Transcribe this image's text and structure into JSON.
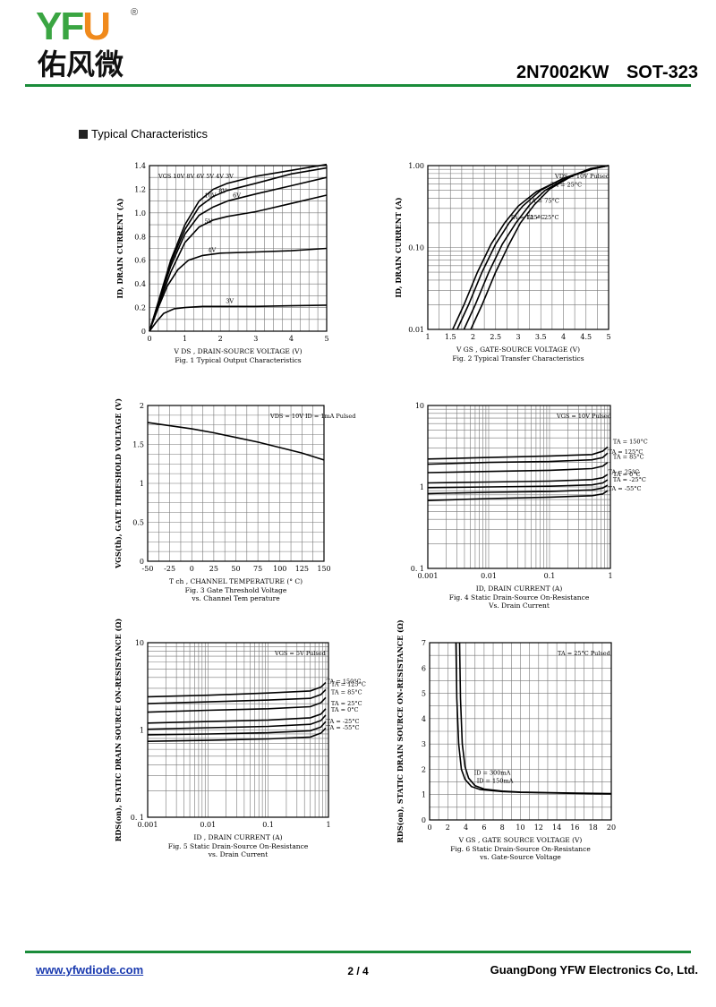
{
  "header": {
    "logo_yf": "YF",
    "logo_u": "U",
    "logo_reg": "®",
    "logo_cn": "佑风微",
    "part": "2N7002KW SOT-323"
  },
  "section_title": "Typical Characteristics",
  "footer": {
    "url": "www.yfwdiode.com",
    "page": "2 / 4",
    "company": "GuangDong YFW Electronics Co, Ltd."
  },
  "colors": {
    "brand_green": "#1a8c3a",
    "brand_orange": "#f08a1c",
    "grid": "#777777"
  },
  "chart_data": [
    {
      "id": "fig1",
      "type": "line",
      "scale": "linear",
      "title": "Fig. 1 Typical Output Characteristics",
      "xlabel": "V DS , DRAIN-SOURCE VOLTAGE (V)",
      "ylabel": "ID, DRAIN CURRENT (A)",
      "xlim": [
        0,
        5
      ],
      "ylim": [
        0,
        1.4
      ],
      "xticks": [
        0,
        1,
        2,
        3,
        4,
        5
      ],
      "xtick_labels": [
        "0",
        "1",
        "2",
        "3",
        "4",
        "5"
      ],
      "yticks": [
        0,
        0.2,
        0.4,
        0.6,
        0.8,
        1.0,
        1.2,
        1.4
      ],
      "ytick_labels": [
        "0",
        "0.2",
        "0.4",
        "0.6",
        "0.8",
        "1.0",
        "1.2",
        "1.4"
      ],
      "legend_text": "VGS 10V 8V 6V 5V 4V 3V",
      "series": [
        {
          "name": "10V",
          "x": [
            0,
            0.3,
            0.6,
            1.0,
            1.4,
            1.8,
            2.2,
            3,
            4,
            5
          ],
          "y": [
            0,
            0.3,
            0.6,
            0.9,
            1.1,
            1.2,
            1.25,
            1.31,
            1.36,
            1.41
          ]
        },
        {
          "name": "8V",
          "x": [
            0,
            0.3,
            0.6,
            1.0,
            1.4,
            1.8,
            2.2,
            3,
            4,
            5
          ],
          "y": [
            0,
            0.29,
            0.58,
            0.86,
            1.05,
            1.14,
            1.19,
            1.25,
            1.33,
            1.38
          ]
        },
        {
          "name": "6V",
          "x": [
            0,
            0.3,
            0.6,
            1.0,
            1.4,
            1.8,
            2.2,
            3,
            4,
            5
          ],
          "y": [
            0,
            0.28,
            0.55,
            0.82,
            0.98,
            1.05,
            1.1,
            1.16,
            1.23,
            1.3
          ]
        },
        {
          "name": "5V",
          "x": [
            0,
            0.3,
            0.6,
            1.0,
            1.4,
            1.8,
            2.2,
            3,
            4,
            5
          ],
          "y": [
            0,
            0.26,
            0.5,
            0.75,
            0.88,
            0.94,
            0.97,
            1.01,
            1.08,
            1.15
          ]
        },
        {
          "name": "4V",
          "x": [
            0,
            0.25,
            0.5,
            0.8,
            1.1,
            1.5,
            2,
            3,
            4,
            5
          ],
          "y": [
            0,
            0.2,
            0.38,
            0.52,
            0.6,
            0.64,
            0.66,
            0.67,
            0.68,
            0.7
          ]
        },
        {
          "name": "3V",
          "x": [
            0,
            0.2,
            0.4,
            0.7,
            1.0,
            1.5,
            2,
            3,
            4,
            5
          ],
          "y": [
            0,
            0.08,
            0.15,
            0.19,
            0.2,
            0.21,
            0.21,
            0.21,
            0.215,
            0.22
          ]
        }
      ],
      "annotations": [
        "10V",
        "8V",
        "6V",
        "5V",
        "4V",
        "3V"
      ]
    },
    {
      "id": "fig2",
      "type": "line",
      "scale": "log-y",
      "title": "Fig. 2 Typical Transfer Characteristics",
      "xlabel": "V GS , GATE-SOURCE VOLTAGE (V)",
      "ylabel": "ID, DRAIN CURRENT (A)",
      "xlim": [
        1,
        5
      ],
      "ylim": [
        0.01,
        1.0
      ],
      "xticks": [
        1,
        1.5,
        2,
        2.5,
        3,
        3.5,
        4,
        4.5,
        5
      ],
      "xtick_labels": [
        "1",
        "1.5",
        "2",
        "2.5",
        "3",
        "3.5",
        "4",
        "4.5",
        "5"
      ],
      "yticks": [
        0.01,
        0.1,
        1.0
      ],
      "ytick_labels": [
        "0.01",
        "0.10",
        "1.00"
      ],
      "legend_text": "VDS = 10V Pulsed",
      "series": [
        {
          "name": "TA = 125°C",
          "x": [
            1.55,
            1.8,
            2.1,
            2.4,
            2.7,
            3.0,
            3.4,
            4.0,
            4.6,
            5.0
          ],
          "y": [
            0.01,
            0.02,
            0.05,
            0.11,
            0.2,
            0.32,
            0.48,
            0.7,
            0.9,
            1.0
          ]
        },
        {
          "name": "TA = 75°C",
          "x": [
            1.65,
            1.9,
            2.2,
            2.5,
            2.8,
            3.1,
            3.5,
            4.0,
            4.6,
            5.0
          ],
          "y": [
            0.01,
            0.02,
            0.05,
            0.11,
            0.2,
            0.32,
            0.5,
            0.7,
            0.9,
            1.0
          ]
        },
        {
          "name": "TA = 25°C",
          "x": [
            1.8,
            2.05,
            2.35,
            2.65,
            2.95,
            3.25,
            3.6,
            4.1,
            4.6,
            5.0
          ],
          "y": [
            0.01,
            0.02,
            0.05,
            0.11,
            0.2,
            0.33,
            0.5,
            0.72,
            0.92,
            1.0
          ]
        },
        {
          "name": "TA = -25°C",
          "x": [
            1.95,
            2.2,
            2.5,
            2.8,
            3.05,
            3.35,
            3.7,
            4.2,
            4.7,
            5.0
          ],
          "y": [
            0.01,
            0.02,
            0.05,
            0.11,
            0.2,
            0.33,
            0.52,
            0.75,
            0.93,
            1.0
          ]
        }
      ],
      "annotations": [
        "TA = 125°C",
        "TA = 75°C",
        "TA = 25°C",
        "TA = -25°C"
      ]
    },
    {
      "id": "fig3",
      "type": "line",
      "scale": "linear",
      "title": "Fig. 3 Gate Threshold Voltage vs. Channel Tem perature",
      "xlabel": "T ch , CHANNEL TEMPERATURE (° C)",
      "ylabel": "VGS(th), GATE THRESHOLD VOLTAGE (V)",
      "xlim": [
        -50,
        150
      ],
      "ylim": [
        0,
        2
      ],
      "xticks": [
        -50,
        -25,
        0,
        25,
        50,
        75,
        100,
        125,
        150
      ],
      "xtick_labels": [
        "-50",
        "-25",
        "0",
        "25",
        "50",
        "75",
        "100",
        "125",
        "150"
      ],
      "yticks": [
        0,
        0.5,
        1,
        1.5,
        2
      ],
      "ytick_labels": [
        "0",
        "0.5",
        "1",
        "1.5",
        "2"
      ],
      "legend_text": "VDS = 10V ID = 1mA Pulsed",
      "series": [
        {
          "name": "VGS(th)",
          "x": [
            -50,
            -25,
            0,
            25,
            50,
            75,
            100,
            125,
            150
          ],
          "y": [
            1.78,
            1.74,
            1.7,
            1.65,
            1.59,
            1.53,
            1.46,
            1.39,
            1.3
          ]
        }
      ]
    },
    {
      "id": "fig4",
      "type": "line",
      "scale": "log-log",
      "title": "Fig. 4 Static Drain-Source On-Resistance Vs. Drain Current",
      "xlabel": "ID, DRAIN CURRENT (A)",
      "ylabel": "",
      "xlim": [
        0.001,
        1
      ],
      "ylim": [
        0.1,
        10
      ],
      "xticks": [
        0.001,
        0.01,
        0.1,
        1
      ],
      "xtick_labels": [
        "0.001",
        "0.01",
        "0.1",
        "1"
      ],
      "yticks": [
        0.1,
        1,
        10
      ],
      "ytick_labels": [
        "0. 1",
        "1",
        "10"
      ],
      "legend_text": "VGS = 10V Pulsed",
      "series": [
        {
          "name": "TA = 150°C",
          "x": [
            0.001,
            0.01,
            0.1,
            0.5,
            0.75,
            0.9
          ],
          "y": [
            2.2,
            2.3,
            2.4,
            2.5,
            2.75,
            3.1
          ]
        },
        {
          "name": "TA = 125°C",
          "x": [
            0.001,
            0.01,
            0.1,
            0.5,
            0.75,
            0.9
          ],
          "y": [
            1.9,
            2.0,
            2.05,
            2.15,
            2.3,
            2.6
          ]
        },
        {
          "name": "TA = 85°C",
          "x": [
            0.001,
            0.01,
            0.1,
            0.5,
            0.75,
            0.9
          ],
          "y": [
            1.5,
            1.55,
            1.6,
            1.68,
            1.8,
            2.0
          ]
        },
        {
          "name": "TA = 25°C",
          "x": [
            0.001,
            0.01,
            0.1,
            0.5,
            0.75,
            0.9
          ],
          "y": [
            1.12,
            1.15,
            1.18,
            1.23,
            1.3,
            1.42
          ]
        },
        {
          "name": "TA = 0°C",
          "x": [
            0.001,
            0.01,
            0.1,
            0.5,
            0.75,
            0.9
          ],
          "y": [
            0.98,
            1.0,
            1.02,
            1.06,
            1.12,
            1.22
          ]
        },
        {
          "name": "TA = -25°C",
          "x": [
            0.001,
            0.01,
            0.1,
            0.5,
            0.75,
            0.9
          ],
          "y": [
            0.83,
            0.86,
            0.88,
            0.92,
            0.97,
            1.05
          ]
        },
        {
          "name": "TA = -55°C",
          "x": [
            0.001,
            0.01,
            0.1,
            0.5,
            0.75,
            0.9
          ],
          "y": [
            0.68,
            0.72,
            0.75,
            0.78,
            0.82,
            0.9
          ]
        }
      ],
      "annotations": [
        "TA = 125°C",
        "TA = 85°C",
        "TA = 150°C",
        "TA = 25°C",
        "TA = 0°C",
        "TA = -25°C",
        "TA = -55°C"
      ]
    },
    {
      "id": "fig5",
      "type": "line",
      "scale": "log-log",
      "title": "Fig. 5 Static Drain-Source On-Resistance vs. Drain Current",
      "xlabel": "ID , DRAIN CURRENT (A)",
      "ylabel": "RDS(on), STATIC DRAIN SOURCE ON-RESISTANCE (Ω)",
      "xlim": [
        0.001,
        1
      ],
      "ylim": [
        0.1,
        10
      ],
      "xticks": [
        0.001,
        0.01,
        0.1,
        1
      ],
      "xtick_labels": [
        "0.001",
        "0.01",
        "0.1",
        "1"
      ],
      "yticks": [
        0.1,
        1,
        10
      ],
      "ytick_labels": [
        "0. 1",
        "1",
        "10"
      ],
      "legend_text": "VGS = 5V Pulsed",
      "series": [
        {
          "name": "TA = 150°C",
          "x": [
            0.001,
            0.01,
            0.1,
            0.5,
            0.75,
            0.9
          ],
          "y": [
            2.4,
            2.5,
            2.65,
            2.8,
            3.1,
            3.5
          ]
        },
        {
          "name": "TA = 125°C",
          "x": [
            0.001,
            0.01,
            0.1,
            0.5,
            0.75,
            0.9
          ],
          "y": [
            2.0,
            2.1,
            2.2,
            2.3,
            2.55,
            2.9
          ]
        },
        {
          "name": "TA = 85°C",
          "x": [
            0.001,
            0.01,
            0.1,
            0.5,
            0.75,
            0.9
          ],
          "y": [
            1.6,
            1.68,
            1.75,
            1.85,
            2.05,
            2.35
          ]
        },
        {
          "name": "TA = 25°C",
          "x": [
            0.001,
            0.01,
            0.1,
            0.5,
            0.75,
            0.9
          ],
          "y": [
            1.2,
            1.25,
            1.3,
            1.38,
            1.52,
            1.75
          ]
        },
        {
          "name": "TA = 0°C",
          "x": [
            0.001,
            0.01,
            0.1,
            0.5,
            0.75,
            0.9
          ],
          "y": [
            1.02,
            1.06,
            1.1,
            1.16,
            1.28,
            1.48
          ]
        },
        {
          "name": "TA = -25°C",
          "x": [
            0.001,
            0.01,
            0.1,
            0.5,
            0.75,
            0.9
          ],
          "y": [
            0.88,
            0.9,
            0.93,
            0.98,
            1.08,
            1.25
          ]
        },
        {
          "name": "TA = -55°C",
          "x": [
            0.001,
            0.01,
            0.1,
            0.5,
            0.75,
            0.9
          ],
          "y": [
            0.74,
            0.76,
            0.79,
            0.83,
            0.92,
            1.05
          ]
        }
      ],
      "annotations": [
        "TA = 150°C",
        "TA = 125°C",
        "TA = 85°C",
        "TA = -55°C",
        "TA = 25°C",
        "TA = 0°C",
        "TA = -25°C"
      ]
    },
    {
      "id": "fig6",
      "type": "line",
      "scale": "linear",
      "title": "Fig. 6 Static Drain-Source On-Resistance vs. Gate-Source Voltage",
      "xlabel": "V GS , GATE SOURCE VOLTAGE (V)",
      "ylabel": "RDS(on), STATIC DRAIN SOURCE ON-RESISTANCE (Ω)",
      "xlim": [
        0,
        20
      ],
      "ylim": [
        0,
        7
      ],
      "xticks": [
        0,
        2,
        4,
        6,
        8,
        10,
        12,
        14,
        16,
        18,
        20
      ],
      "xtick_labels": [
        "0",
        "2",
        "4",
        "6",
        "8",
        "10",
        "12",
        "14",
        "16",
        "18",
        "20"
      ],
      "yticks": [
        0,
        1,
        2,
        3,
        4,
        5,
        6,
        7
      ],
      "ytick_labels": [
        "0",
        "1",
        "2",
        "3",
        "4",
        "5",
        "6",
        "7"
      ],
      "legend_text": "TA = 25°C Pulsed",
      "series": [
        {
          "name": "ID = 300mA",
          "x": [
            3.3,
            3.4,
            3.6,
            3.9,
            4.3,
            5,
            6,
            8,
            10,
            14,
            20
          ],
          "y": [
            7,
            4.8,
            3.0,
            2.1,
            1.65,
            1.35,
            1.22,
            1.14,
            1.1,
            1.07,
            1.04
          ]
        },
        {
          "name": "ID = 150mA",
          "x": [
            2.9,
            3.0,
            3.2,
            3.5,
            3.9,
            4.6,
            5.6,
            8,
            10,
            14,
            20
          ],
          "y": [
            7,
            4.8,
            3.0,
            2.0,
            1.6,
            1.32,
            1.2,
            1.12,
            1.09,
            1.06,
            1.03
          ]
        }
      ],
      "annotations": [
        "ID = 300mA",
        "ID = 150mA"
      ]
    }
  ]
}
